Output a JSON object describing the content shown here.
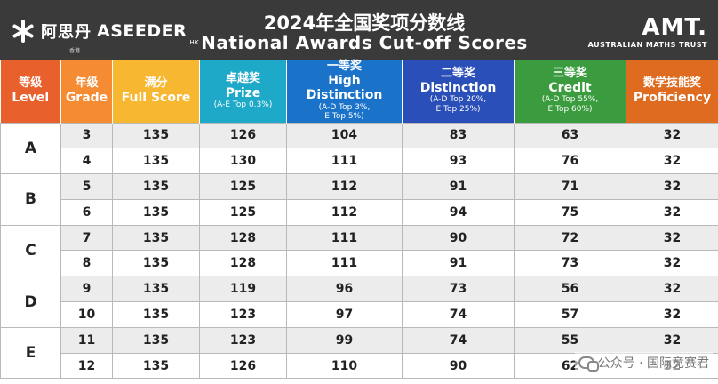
{
  "header": {
    "brand_cn": "阿思丹",
    "brand_en": "ASEEDER",
    "brand_hk": "HK",
    "brand_sub": "香港",
    "title_cn": "2024年全国奖项分数线",
    "title_en": "National Awards Cut-off Scores",
    "amt_logo": "AMT.",
    "amt_sub": "AUSTRALIAN MATHS TRUST"
  },
  "columns": [
    {
      "cn": "等级",
      "en": "Level",
      "note": ""
    },
    {
      "cn": "年级",
      "en": "Grade",
      "note": ""
    },
    {
      "cn": "满分",
      "en": "Full Score",
      "note": ""
    },
    {
      "cn": "卓越奖",
      "en": "Prize",
      "note": "(A-E Top 0.3%)"
    },
    {
      "cn": "一等奖",
      "en": "High Distinction",
      "note": "(A-D Top 3%,\nE Top 5%)"
    },
    {
      "cn": "二等奖",
      "en": "Distinction",
      "note": "(A-D Top 20%,\nE Top 25%)"
    },
    {
      "cn": "三等奖",
      "en": "Credit",
      "note": "(A-D Top 55%,\nE Top 60%)"
    },
    {
      "cn": "数学技能奖",
      "en": "Proficiency",
      "note": ""
    }
  ],
  "rows": [
    {
      "level": "A",
      "grade": "3",
      "full": "135",
      "prize": "126",
      "hd": "104",
      "dist": "83",
      "credit": "63",
      "prof": "32"
    },
    {
      "level": "A",
      "grade": "4",
      "full": "135",
      "prize": "130",
      "hd": "111",
      "dist": "93",
      "credit": "76",
      "prof": "32"
    },
    {
      "level": "B",
      "grade": "5",
      "full": "135",
      "prize": "125",
      "hd": "112",
      "dist": "91",
      "credit": "71",
      "prof": "32"
    },
    {
      "level": "B",
      "grade": "6",
      "full": "135",
      "prize": "125",
      "hd": "112",
      "dist": "94",
      "credit": "75",
      "prof": "32"
    },
    {
      "level": "C",
      "grade": "7",
      "full": "135",
      "prize": "128",
      "hd": "111",
      "dist": "90",
      "credit": "72",
      "prof": "32"
    },
    {
      "level": "C",
      "grade": "8",
      "full": "135",
      "prize": "128",
      "hd": "111",
      "dist": "91",
      "credit": "73",
      "prof": "32"
    },
    {
      "level": "D",
      "grade": "9",
      "full": "135",
      "prize": "119",
      "hd": "96",
      "dist": "73",
      "credit": "56",
      "prof": "32"
    },
    {
      "level": "D",
      "grade": "10",
      "full": "135",
      "prize": "123",
      "hd": "97",
      "dist": "74",
      "credit": "57",
      "prof": "32"
    },
    {
      "level": "E",
      "grade": "11",
      "full": "135",
      "prize": "123",
      "hd": "99",
      "dist": "74",
      "credit": "55",
      "prof": "32"
    },
    {
      "level": "E",
      "grade": "12",
      "full": "135",
      "prize": "126",
      "hd": "110",
      "dist": "90",
      "credit": "62",
      "prof": "32"
    }
  ],
  "watermark": "公众号 · 国际竞赛君",
  "colors": {
    "header_bg": "#3a3a3a",
    "level": "#e8612d",
    "grade": "#f58b32",
    "full": "#f7b731",
    "prize": "#1fa9c8",
    "hd": "#1a73c9",
    "dist": "#2a4fb8",
    "credit": "#3a9c3e",
    "prof": "#de6b1f"
  }
}
